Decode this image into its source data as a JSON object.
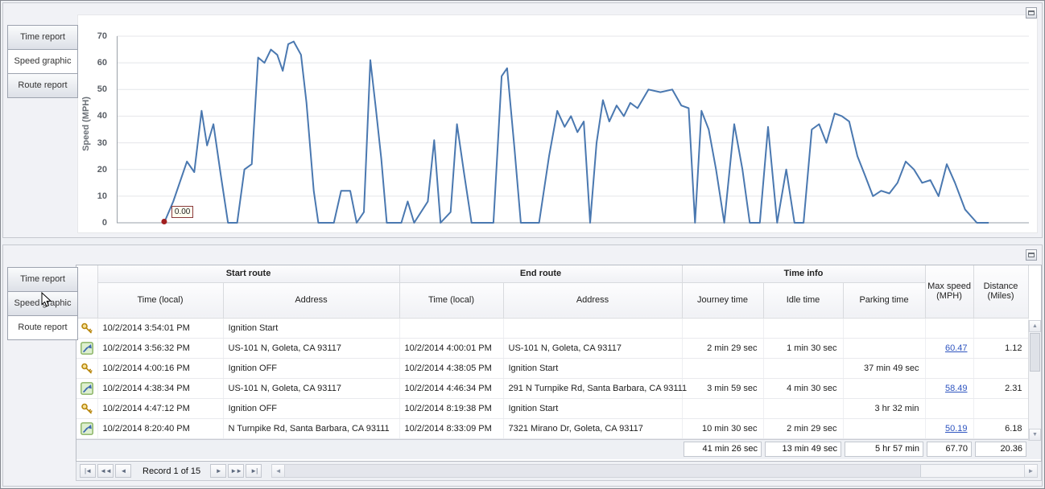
{
  "panels": {
    "top": {
      "tabs": [
        {
          "label": "Time report",
          "selected": false
        },
        {
          "label": "Speed graphic",
          "selected": true
        },
        {
          "label": "Route report",
          "selected": false
        }
      ]
    },
    "bottom": {
      "tabs": [
        {
          "label": "Time report",
          "selected": false
        },
        {
          "label": "Speed graphic",
          "selected": false
        },
        {
          "label": "Route report",
          "selected": true
        }
      ]
    }
  },
  "chart_data": {
    "type": "line",
    "title": "",
    "xlabel": "",
    "ylabel": "Speed (MPH)",
    "ylim": [
      0,
      70
    ],
    "yticks": [
      0,
      10,
      20,
      30,
      40,
      50,
      60,
      70
    ],
    "grid": "horizontal",
    "legend": "none",
    "series_name": "Speed",
    "line_color": "#4a78b0",
    "marker_color": "#a11f1f",
    "annotation": {
      "text": "0.00"
    },
    "points": [
      [
        5.2,
        0
      ],
      [
        6.2,
        8
      ],
      [
        7.7,
        23
      ],
      [
        8.5,
        19
      ],
      [
        9.3,
        42
      ],
      [
        9.9,
        29
      ],
      [
        10.6,
        37
      ],
      [
        11.4,
        18
      ],
      [
        12.2,
        0
      ],
      [
        13.2,
        0
      ],
      [
        14,
        20
      ],
      [
        14.8,
        22
      ],
      [
        15.5,
        62
      ],
      [
        16.2,
        60
      ],
      [
        16.9,
        65
      ],
      [
        17.6,
        63
      ],
      [
        18.2,
        57
      ],
      [
        18.8,
        67
      ],
      [
        19.4,
        68
      ],
      [
        20.2,
        63
      ],
      [
        20.8,
        45
      ],
      [
        21.6,
        12
      ],
      [
        22.1,
        0
      ],
      [
        23.8,
        0
      ],
      [
        24.6,
        12
      ],
      [
        25.6,
        12
      ],
      [
        26.3,
        0
      ],
      [
        27.1,
        4
      ],
      [
        27.8,
        61
      ],
      [
        28.4,
        43
      ],
      [
        29,
        24
      ],
      [
        29.6,
        0
      ],
      [
        31.2,
        0
      ],
      [
        31.9,
        8
      ],
      [
        32.6,
        0
      ],
      [
        34.1,
        8
      ],
      [
        34.8,
        31
      ],
      [
        35.5,
        0
      ],
      [
        36.6,
        4
      ],
      [
        37.3,
        37
      ],
      [
        38.1,
        18
      ],
      [
        38.9,
        0
      ],
      [
        41.3,
        0
      ],
      [
        42.2,
        55
      ],
      [
        42.8,
        58
      ],
      [
        43.6,
        28
      ],
      [
        44.3,
        0
      ],
      [
        46.3,
        0
      ],
      [
        47.4,
        25
      ],
      [
        48.3,
        42
      ],
      [
        49.1,
        36
      ],
      [
        49.8,
        40
      ],
      [
        50.5,
        34
      ],
      [
        51.2,
        38
      ],
      [
        51.9,
        0
      ],
      [
        52.6,
        30
      ],
      [
        53.3,
        46
      ],
      [
        54,
        38
      ],
      [
        54.8,
        44
      ],
      [
        55.6,
        40
      ],
      [
        56.3,
        45
      ],
      [
        57.1,
        43
      ],
      [
        58.3,
        50
      ],
      [
        59.6,
        49
      ],
      [
        60.9,
        50
      ],
      [
        61.9,
        44
      ],
      [
        62.7,
        43
      ],
      [
        63.4,
        0
      ],
      [
        64.1,
        42
      ],
      [
        64.9,
        35
      ],
      [
        65.7,
        20
      ],
      [
        66.6,
        0
      ],
      [
        67.7,
        37
      ],
      [
        68.6,
        20
      ],
      [
        69.4,
        0
      ],
      [
        70.5,
        0
      ],
      [
        71.4,
        36
      ],
      [
        72.4,
        0
      ],
      [
        73.4,
        20
      ],
      [
        74.3,
        0
      ],
      [
        75.3,
        0
      ],
      [
        76.2,
        35
      ],
      [
        77,
        37
      ],
      [
        77.8,
        30
      ],
      [
        78.7,
        41
      ],
      [
        79.5,
        40
      ],
      [
        80.3,
        38
      ],
      [
        81.2,
        25
      ],
      [
        82,
        18
      ],
      [
        82.9,
        10
      ],
      [
        83.8,
        12
      ],
      [
        84.7,
        11
      ],
      [
        85.6,
        15
      ],
      [
        86.5,
        23
      ],
      [
        87.4,
        20
      ],
      [
        88.3,
        15
      ],
      [
        89.2,
        16
      ],
      [
        90.1,
        10
      ],
      [
        91,
        22
      ],
      [
        91.9,
        15
      ],
      [
        93,
        5
      ],
      [
        94.3,
        0
      ],
      [
        95.6,
        0
      ]
    ]
  },
  "grid": {
    "bands": [
      {
        "label": "Start route"
      },
      {
        "label": "End route"
      },
      {
        "label": "Time info"
      }
    ],
    "columns": [
      "Time (local)",
      "Address",
      "Time (local)",
      "Address",
      "Journey time",
      "Idle time",
      "Parking time",
      "Max speed (MPH)",
      "Distance (Miles)"
    ],
    "rows": [
      {
        "icon": "key",
        "cells": [
          "10/2/2014 3:54:01 PM",
          "Ignition Start",
          "",
          "",
          "",
          "",
          "",
          "",
          ""
        ]
      },
      {
        "icon": "route",
        "cells": [
          "10/2/2014 3:56:32 PM",
          "US-101 N, Goleta, CA 93117",
          "10/2/2014 4:00:01 PM",
          "US-101 N, Goleta, CA 93117",
          "2 min 29 sec",
          "1 min 30 sec",
          "",
          "60.47",
          "1.12"
        ]
      },
      {
        "icon": "key",
        "cells": [
          "10/2/2014 4:00:16 PM",
          "Ignition OFF",
          "10/2/2014 4:38:05 PM",
          "Ignition Start",
          "",
          "",
          "37 min 49 sec",
          "",
          ""
        ]
      },
      {
        "icon": "route",
        "cells": [
          "10/2/2014 4:38:34 PM",
          "US-101 N, Goleta, CA 93117",
          "10/2/2014 4:46:34 PM",
          "291 N Turnpike Rd, Santa Barbara, CA 93111",
          "3 min 59 sec",
          "4 min 30 sec",
          "",
          "58.49",
          "2.31"
        ]
      },
      {
        "icon": "key",
        "cells": [
          "10/2/2014 4:47:12 PM",
          "Ignition OFF",
          "10/2/2014 8:19:38 PM",
          "Ignition Start",
          "",
          "",
          "3 hr 32 min",
          "",
          ""
        ]
      },
      {
        "icon": "route",
        "cells": [
          "10/2/2014 8:20:40 PM",
          "N Turnpike Rd, Santa Barbara, CA 93111",
          "10/2/2014 8:33:09 PM",
          "7321 Mirano Dr, Goleta, CA 93117",
          "10 min 30 sec",
          "2 min 29 sec",
          "",
          "50.19",
          "6.18"
        ]
      }
    ],
    "summary": {
      "journey_time": "41 min 26 sec",
      "idle_time": "13 min 49 sec",
      "parking_time": "5 hr 57 min",
      "max_speed": "67.70",
      "distance": "20.36"
    },
    "navigator": {
      "left": [
        "|◄",
        "◄◄",
        "◄"
      ],
      "record_text": "Record 1 of 15",
      "right": [
        "►",
        "►►",
        "►|"
      ]
    },
    "scrollbar": {
      "up": "▲",
      "down": "▼",
      "left": "◄",
      "right": "►"
    }
  }
}
